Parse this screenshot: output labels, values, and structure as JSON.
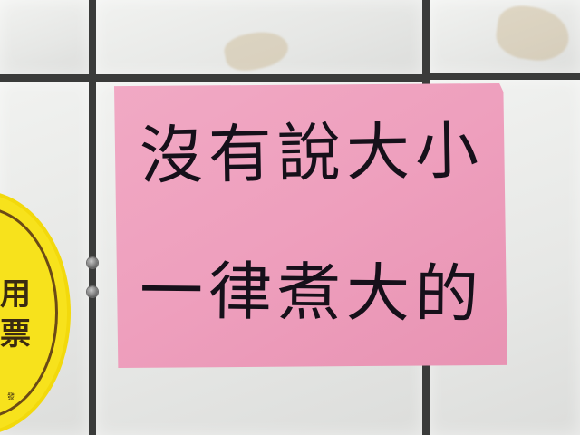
{
  "sign": {
    "line1": "沒有說大小",
    "line2": "一律煮大的",
    "color": "#ee9fbd",
    "ink_color": "#16101a"
  },
  "sticker": {
    "line1": "用",
    "line2": "票",
    "small": "發",
    "color": "#f7e21c"
  },
  "wall": {
    "tile_color": "#e8e9e7",
    "grout_color": "#3a3b3a"
  }
}
